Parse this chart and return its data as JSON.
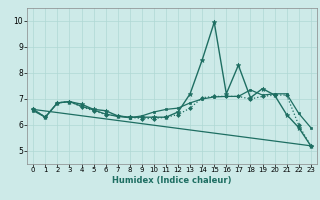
{
  "title": "",
  "xlabel": "Humidex (Indice chaleur)",
  "xlim": [
    -0.5,
    23.5
  ],
  "ylim": [
    4.5,
    10.5
  ],
  "yticks": [
    5,
    6,
    7,
    8,
    9,
    10
  ],
  "xticks": [
    0,
    1,
    2,
    3,
    4,
    5,
    6,
    7,
    8,
    9,
    10,
    11,
    12,
    13,
    14,
    15,
    16,
    17,
    18,
    19,
    20,
    21,
    22,
    23
  ],
  "bg_color": "#cdeae8",
  "grid_color": "#b0d8d4",
  "line_color": "#1e6e62",
  "lines": [
    {
      "x": [
        0,
        1,
        2,
        3,
        4,
        5,
        6,
        7,
        8,
        9,
        10,
        11,
        12,
        13,
        14,
        15,
        16,
        17,
        18,
        19,
        20,
        21,
        22,
        23
      ],
      "y": [
        6.6,
        6.3,
        6.85,
        6.9,
        6.8,
        6.6,
        6.55,
        6.35,
        6.3,
        6.3,
        6.3,
        6.3,
        6.5,
        7.2,
        8.5,
        9.95,
        7.2,
        8.3,
        7.05,
        7.4,
        7.15,
        6.4,
        5.9,
        5.2
      ],
      "style": "-",
      "marker": "*",
      "markersize": 3.5,
      "linewidth": 1.0
    },
    {
      "x": [
        0,
        1,
        2,
        3,
        4,
        5,
        6,
        7,
        8,
        9,
        10,
        11,
        12,
        13,
        14,
        15,
        16,
        17,
        18,
        19,
        20,
        21,
        22,
        23
      ],
      "y": [
        6.6,
        6.3,
        6.85,
        6.9,
        6.7,
        6.55,
        6.4,
        6.35,
        6.3,
        6.25,
        6.25,
        6.3,
        6.4,
        6.65,
        7.05,
        7.1,
        7.1,
        7.1,
        7.0,
        7.1,
        7.15,
        7.15,
        6.0,
        5.2
      ],
      "style": ":",
      "marker": "D",
      "markersize": 2.0,
      "linewidth": 0.9
    },
    {
      "x": [
        0,
        1,
        2,
        3,
        4,
        5,
        6,
        7,
        8,
        9,
        10,
        11,
        12,
        13,
        14,
        15,
        16,
        17,
        18,
        19,
        20,
        21,
        22,
        23
      ],
      "y": [
        6.55,
        6.3,
        6.85,
        6.9,
        6.72,
        6.58,
        6.42,
        6.33,
        6.28,
        6.35,
        6.5,
        6.6,
        6.65,
        6.85,
        7.0,
        7.08,
        7.1,
        7.1,
        7.35,
        7.15,
        7.2,
        7.2,
        6.45,
        5.9
      ],
      "style": "-",
      "marker": "s",
      "markersize": 1.8,
      "linewidth": 0.9
    },
    {
      "x": [
        0,
        23
      ],
      "y": [
        6.6,
        5.2
      ],
      "style": "-",
      "marker": null,
      "markersize": 0,
      "linewidth": 0.9
    }
  ]
}
